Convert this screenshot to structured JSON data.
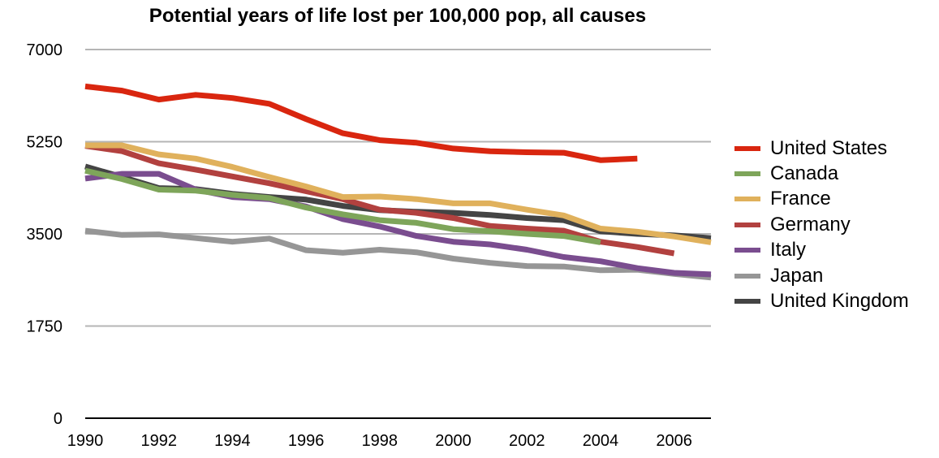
{
  "chart_data": {
    "type": "line",
    "title": "Potential years of life lost per 100,000 pop, all causes",
    "xlabel": "",
    "ylabel": "",
    "xlim": [
      1990,
      2007
    ],
    "ylim": [
      0,
      7000
    ],
    "yticks": [
      0,
      1750,
      3500,
      5250,
      7000
    ],
    "xticks": [
      1990,
      1992,
      1994,
      1996,
      1998,
      2000,
      2002,
      2004,
      2006
    ],
    "grid": true,
    "legend_position": "right",
    "series": [
      {
        "name": "United States",
        "color": "#d9260f",
        "x": [
          1990,
          1991,
          1992,
          1993,
          1994,
          1995,
          1996,
          1997,
          1998,
          1999,
          2000,
          2001,
          2002,
          2003,
          2004,
          2005
        ],
        "values": [
          6300,
          6220,
          6050,
          6140,
          6080,
          5970,
          5680,
          5410,
          5280,
          5230,
          5120,
          5070,
          5050,
          5040,
          4900,
          4930
        ]
      },
      {
        "name": "Canada",
        "color": "#7ea55a",
        "x": [
          1990,
          1991,
          1992,
          1993,
          1994,
          1995,
          1996,
          1997,
          1998,
          1999,
          2000,
          2001,
          2002,
          2003,
          2004
        ],
        "values": [
          4700,
          4540,
          4340,
          4320,
          4240,
          4180,
          4000,
          3870,
          3760,
          3710,
          3590,
          3550,
          3500,
          3460,
          3340
        ]
      },
      {
        "name": "France",
        "color": "#e0b15c",
        "x": [
          1990,
          1991,
          1992,
          1993,
          1994,
          1995,
          1996,
          1997,
          1998,
          1999,
          2000,
          2001,
          2002,
          2003,
          2004,
          2005,
          2006,
          2007
        ],
        "values": [
          5180,
          5180,
          5010,
          4930,
          4770,
          4580,
          4400,
          4200,
          4210,
          4160,
          4080,
          4080,
          3960,
          3850,
          3600,
          3540,
          3450,
          3340
        ]
      },
      {
        "name": "Germany",
        "color": "#b2413f",
        "x": [
          1990,
          1991,
          1992,
          1993,
          1994,
          1995,
          1996,
          1997,
          1998,
          1999,
          2000,
          2001,
          2002,
          2003,
          2004,
          2005,
          2006
        ],
        "values": [
          5170,
          5070,
          4840,
          4720,
          4590,
          4460,
          4310,
          4160,
          3960,
          3900,
          3800,
          3650,
          3600,
          3560,
          3350,
          3250,
          3130
        ]
      },
      {
        "name": "Italy",
        "color": "#7a4d8f",
        "x": [
          1990,
          1991,
          1992,
          1993,
          1994,
          1995,
          1996,
          1997,
          1998,
          1999,
          2000,
          2001,
          2002,
          2003,
          2004,
          2005,
          2006,
          2007
        ],
        "values": [
          4550,
          4640,
          4640,
          4340,
          4200,
          4160,
          4020,
          3780,
          3640,
          3460,
          3350,
          3300,
          3200,
          3060,
          2980,
          2850,
          2760,
          2730
        ]
      },
      {
        "name": "Japan",
        "color": "#969696",
        "x": [
          1990,
          1991,
          1992,
          1993,
          1994,
          1995,
          1996,
          1997,
          1998,
          1999,
          2000,
          2001,
          2002,
          2003,
          2004,
          2005,
          2006,
          2007
        ],
        "values": [
          3560,
          3480,
          3490,
          3420,
          3350,
          3410,
          3190,
          3140,
          3200,
          3150,
          3030,
          2950,
          2890,
          2880,
          2810,
          2820,
          2740,
          2670
        ]
      },
      {
        "name": "United Kingdom",
        "color": "#444444",
        "x": [
          1990,
          1991,
          1992,
          1993,
          1994,
          1995,
          1996,
          1997,
          1998,
          1999,
          2000,
          2001,
          2002,
          2003,
          2004,
          2005,
          2006,
          2007
        ],
        "values": [
          4780,
          4580,
          4370,
          4350,
          4260,
          4200,
          4150,
          4030,
          3950,
          3920,
          3900,
          3860,
          3800,
          3760,
          3550,
          3500,
          3470,
          3420
        ]
      }
    ]
  }
}
